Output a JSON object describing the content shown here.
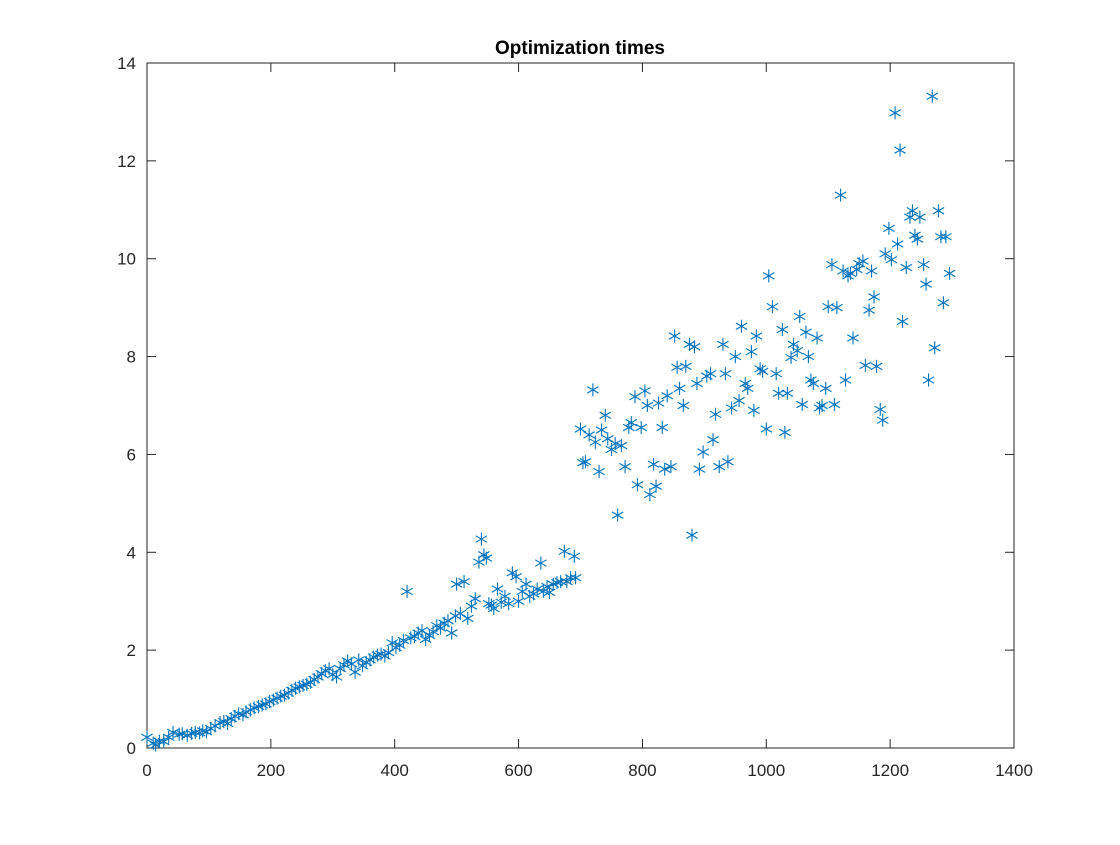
{
  "chart_data": {
    "type": "scatter",
    "title": "Optimization times",
    "xlabel": "",
    "ylabel": "",
    "xlim": [
      0,
      1400
    ],
    "ylim": [
      0,
      14
    ],
    "xticks": [
      0,
      200,
      400,
      600,
      800,
      1000,
      1200,
      1400
    ],
    "yticks": [
      0,
      2,
      4,
      6,
      8,
      10,
      12,
      14
    ],
    "xtick_labels": [
      "0",
      "200",
      "400",
      "600",
      "800",
      "1000",
      "1200",
      "1400"
    ],
    "ytick_labels": [
      "0",
      "2",
      "4",
      "6",
      "8",
      "10",
      "12",
      "14"
    ],
    "grid": false,
    "marker": "asterisk",
    "color": "#0072BD",
    "points": [
      [
        0,
        0.22
      ],
      [
        10,
        0.1
      ],
      [
        14,
        0.06
      ],
      [
        20,
        0.14
      ],
      [
        27,
        0.13
      ],
      [
        35,
        0.22
      ],
      [
        42,
        0.32
      ],
      [
        52,
        0.28
      ],
      [
        57,
        0.29
      ],
      [
        65,
        0.26
      ],
      [
        72,
        0.3
      ],
      [
        78,
        0.32
      ],
      [
        85,
        0.31
      ],
      [
        90,
        0.35
      ],
      [
        96,
        0.33
      ],
      [
        103,
        0.4
      ],
      [
        110,
        0.45
      ],
      [
        118,
        0.52
      ],
      [
        124,
        0.54
      ],
      [
        130,
        0.5
      ],
      [
        136,
        0.6
      ],
      [
        142,
        0.65
      ],
      [
        148,
        0.7
      ],
      [
        155,
        0.68
      ],
      [
        160,
        0.74
      ],
      [
        167,
        0.78
      ],
      [
        173,
        0.82
      ],
      [
        180,
        0.85
      ],
      [
        186,
        0.88
      ],
      [
        192,
        0.9
      ],
      [
        198,
        0.95
      ],
      [
        204,
        0.98
      ],
      [
        210,
        1.02
      ],
      [
        216,
        1.06
      ],
      [
        222,
        1.08
      ],
      [
        228,
        1.12
      ],
      [
        234,
        1.18
      ],
      [
        240,
        1.22
      ],
      [
        246,
        1.25
      ],
      [
        252,
        1.28
      ],
      [
        258,
        1.3
      ],
      [
        264,
        1.34
      ],
      [
        270,
        1.4
      ],
      [
        276,
        1.45
      ],
      [
        282,
        1.52
      ],
      [
        288,
        1.58
      ],
      [
        294,
        1.62
      ],
      [
        300,
        1.5
      ],
      [
        306,
        1.45
      ],
      [
        312,
        1.62
      ],
      [
        318,
        1.7
      ],
      [
        324,
        1.78
      ],
      [
        330,
        1.72
      ],
      [
        336,
        1.55
      ],
      [
        342,
        1.8
      ],
      [
        348,
        1.68
      ],
      [
        354,
        1.75
      ],
      [
        360,
        1.8
      ],
      [
        366,
        1.86
      ],
      [
        372,
        1.9
      ],
      [
        378,
        1.92
      ],
      [
        384,
        1.88
      ],
      [
        390,
        1.95
      ],
      [
        396,
        2.15
      ],
      [
        402,
        2.05
      ],
      [
        408,
        2.1
      ],
      [
        414,
        2.2
      ],
      [
        420,
        3.2
      ],
      [
        426,
        2.25
      ],
      [
        432,
        2.28
      ],
      [
        438,
        2.35
      ],
      [
        444,
        2.4
      ],
      [
        450,
        2.22
      ],
      [
        456,
        2.3
      ],
      [
        462,
        2.38
      ],
      [
        468,
        2.5
      ],
      [
        474,
        2.45
      ],
      [
        480,
        2.55
      ],
      [
        486,
        2.6
      ],
      [
        492,
        2.35
      ],
      [
        498,
        2.7
      ],
      [
        500,
        3.35
      ],
      [
        506,
        2.75
      ],
      [
        512,
        3.4
      ],
      [
        518,
        2.65
      ],
      [
        524,
        2.9
      ],
      [
        530,
        3.05
      ],
      [
        536,
        3.8
      ],
      [
        540,
        4.27
      ],
      [
        544,
        3.95
      ],
      [
        548,
        3.88
      ],
      [
        552,
        2.95
      ],
      [
        556,
        2.92
      ],
      [
        560,
        2.85
      ],
      [
        566,
        3.25
      ],
      [
        572,
        2.98
      ],
      [
        578,
        3.1
      ],
      [
        584,
        2.95
      ],
      [
        590,
        3.58
      ],
      [
        596,
        3.5
      ],
      [
        600,
        3.0
      ],
      [
        606,
        3.2
      ],
      [
        612,
        3.35
      ],
      [
        618,
        3.1
      ],
      [
        624,
        3.15
      ],
      [
        630,
        3.25
      ],
      [
        636,
        3.78
      ],
      [
        640,
        3.2
      ],
      [
        646,
        3.3
      ],
      [
        650,
        3.18
      ],
      [
        656,
        3.35
      ],
      [
        662,
        3.38
      ],
      [
        668,
        3.4
      ],
      [
        674,
        4.02
      ],
      [
        678,
        3.4
      ],
      [
        684,
        3.48
      ],
      [
        690,
        3.92
      ],
      [
        692,
        3.48
      ],
      [
        700,
        6.52
      ],
      [
        704,
        5.83
      ],
      [
        708,
        5.85
      ],
      [
        714,
        6.4
      ],
      [
        720,
        7.32
      ],
      [
        724,
        6.25
      ],
      [
        730,
        5.65
      ],
      [
        734,
        6.5
      ],
      [
        740,
        6.8
      ],
      [
        744,
        6.32
      ],
      [
        750,
        6.1
      ],
      [
        756,
        6.22
      ],
      [
        760,
        4.76
      ],
      [
        766,
        6.18
      ],
      [
        772,
        5.75
      ],
      [
        778,
        6.55
      ],
      [
        782,
        6.65
      ],
      [
        788,
        7.18
      ],
      [
        792,
        5.38
      ],
      [
        798,
        6.55
      ],
      [
        804,
        7.3
      ],
      [
        808,
        7.0
      ],
      [
        812,
        5.18
      ],
      [
        818,
        5.8
      ],
      [
        822,
        5.35
      ],
      [
        826,
        7.05
      ],
      [
        832,
        6.55
      ],
      [
        836,
        5.7
      ],
      [
        840,
        7.2
      ],
      [
        846,
        5.75
      ],
      [
        852,
        8.42
      ],
      [
        856,
        7.78
      ],
      [
        860,
        7.35
      ],
      [
        866,
        7.0
      ],
      [
        870,
        7.8
      ],
      [
        876,
        8.25
      ],
      [
        880,
        4.35
      ],
      [
        884,
        8.2
      ],
      [
        888,
        7.45
      ],
      [
        892,
        5.7
      ],
      [
        898,
        6.05
      ],
      [
        904,
        7.6
      ],
      [
        910,
        7.65
      ],
      [
        914,
        6.3
      ],
      [
        918,
        6.82
      ],
      [
        924,
        5.75
      ],
      [
        930,
        8.25
      ],
      [
        934,
        7.65
      ],
      [
        938,
        5.85
      ],
      [
        944,
        6.95
      ],
      [
        950,
        8.0
      ],
      [
        956,
        7.1
      ],
      [
        960,
        8.62
      ],
      [
        966,
        7.45
      ],
      [
        970,
        7.35
      ],
      [
        976,
        8.1
      ],
      [
        980,
        6.9
      ],
      [
        984,
        8.42
      ],
      [
        990,
        7.75
      ],
      [
        994,
        7.7
      ],
      [
        1000,
        6.52
      ],
      [
        1004,
        9.65
      ],
      [
        1010,
        9.02
      ],
      [
        1016,
        7.65
      ],
      [
        1020,
        7.25
      ],
      [
        1026,
        8.55
      ],
      [
        1030,
        6.45
      ],
      [
        1034,
        7.25
      ],
      [
        1040,
        7.98
      ],
      [
        1044,
        8.25
      ],
      [
        1050,
        8.12
      ],
      [
        1054,
        8.82
      ],
      [
        1058,
        7.02
      ],
      [
        1064,
        8.5
      ],
      [
        1068,
        8.0
      ],
      [
        1072,
        7.52
      ],
      [
        1076,
        7.45
      ],
      [
        1082,
        8.38
      ],
      [
        1086,
        6.95
      ],
      [
        1090,
        7.0
      ],
      [
        1096,
        7.35
      ],
      [
        1100,
        9.02
      ],
      [
        1106,
        9.88
      ],
      [
        1110,
        7.02
      ],
      [
        1114,
        9.0
      ],
      [
        1120,
        11.3
      ],
      [
        1124,
        9.75
      ],
      [
        1128,
        7.52
      ],
      [
        1132,
        9.65
      ],
      [
        1136,
        9.7
      ],
      [
        1140,
        8.38
      ],
      [
        1146,
        9.78
      ],
      [
        1150,
        9.9
      ],
      [
        1156,
        9.95
      ],
      [
        1160,
        7.82
      ],
      [
        1166,
        8.95
      ],
      [
        1170,
        9.75
      ],
      [
        1174,
        9.22
      ],
      [
        1178,
        7.8
      ],
      [
        1184,
        6.92
      ],
      [
        1188,
        6.7
      ],
      [
        1192,
        10.1
      ],
      [
        1198,
        10.62
      ],
      [
        1202,
        9.98
      ],
      [
        1208,
        12.98
      ],
      [
        1212,
        10.3
      ],
      [
        1216,
        12.22
      ],
      [
        1220,
        8.72
      ],
      [
        1226,
        9.82
      ],
      [
        1232,
        10.85
      ],
      [
        1236,
        10.98
      ],
      [
        1240,
        10.48
      ],
      [
        1244,
        10.4
      ],
      [
        1248,
        10.85
      ],
      [
        1254,
        9.88
      ],
      [
        1258,
        9.48
      ],
      [
        1262,
        7.52
      ],
      [
        1268,
        13.32
      ],
      [
        1272,
        8.18
      ],
      [
        1278,
        10.98
      ],
      [
        1282,
        10.45
      ],
      [
        1286,
        9.1
      ],
      [
        1290,
        10.45
      ],
      [
        1296,
        9.7
      ]
    ]
  }
}
